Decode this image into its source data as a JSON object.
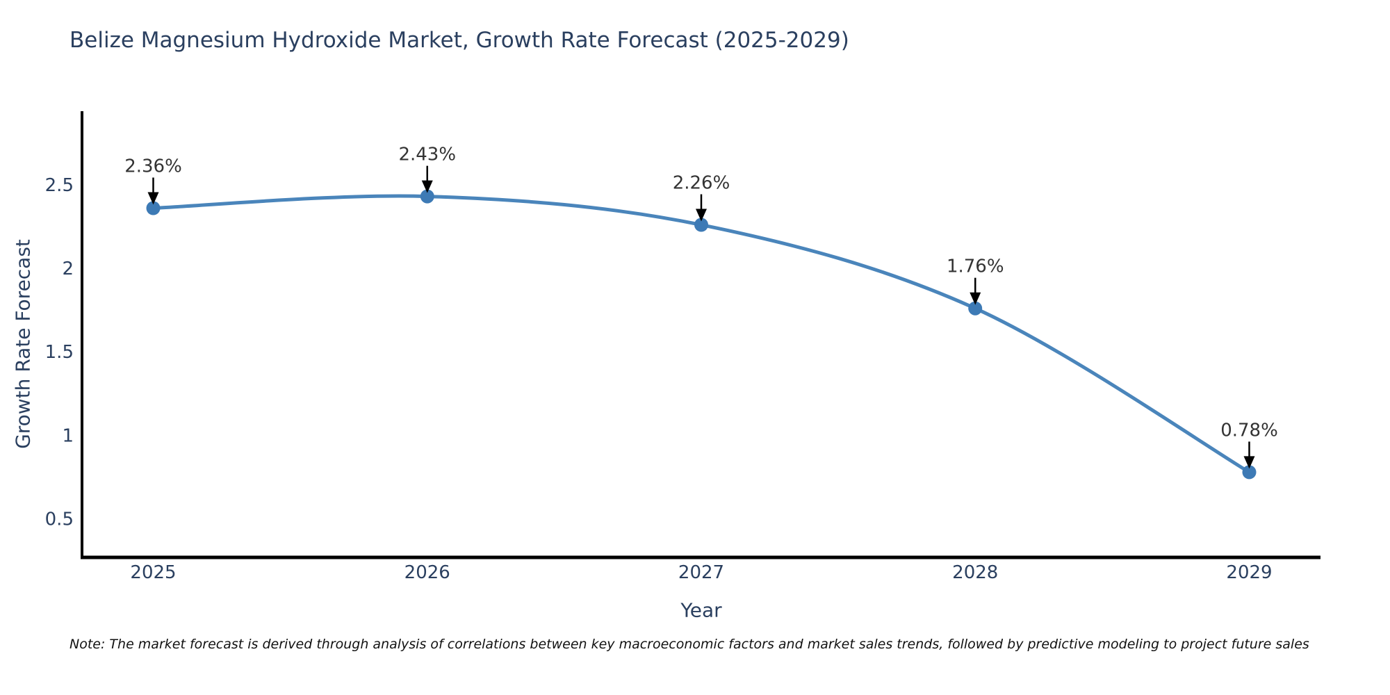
{
  "title": "Belize Magnesium Hydroxide Market, Growth Rate Forecast (2025-2029)",
  "note": "Note: The market forecast is derived through analysis of correlations between key macroeconomic factors and market sales trends, followed by predictive modeling to project future sales",
  "chart_data": {
    "type": "line",
    "title": "Belize Magnesium Hydroxide Market, Growth Rate Forecast (2025-2029)",
    "xlabel": "Year",
    "ylabel": "Growth Rate Forecast",
    "x": [
      2025,
      2026,
      2027,
      2028,
      2029
    ],
    "series": [
      {
        "name": "Growth Rate Forecast",
        "values": [
          2.36,
          2.43,
          2.26,
          1.76,
          0.78
        ]
      }
    ],
    "point_labels": [
      "2.36%",
      "2.43%",
      "2.26%",
      "1.76%",
      "0.78%"
    ],
    "ytick_values": [
      0.5,
      1,
      1.5,
      2,
      2.5
    ],
    "ytick_labels": [
      "0.5",
      "1",
      "1.5",
      "2",
      "2.5"
    ],
    "xtick_values": [
      2025,
      2026,
      2027,
      2028,
      2029
    ],
    "xtick_labels": [
      "2025",
      "2026",
      "2027",
      "2028",
      "2029"
    ],
    "xlim": [
      2024.74,
      2029.26
    ],
    "ylim": [
      0.27,
      2.94
    ],
    "grid": false,
    "legend": false,
    "line_shape": "spline",
    "annotation_arrows": true
  },
  "colors": {
    "line": "#4a85bb",
    "marker": "#3d7ab5",
    "axis_text": "#2a3f5f",
    "annotation_text": "#333333",
    "axis_line": "#000000",
    "arrow": "#000000",
    "note_text": "#111111",
    "background": "#ffffff"
  }
}
